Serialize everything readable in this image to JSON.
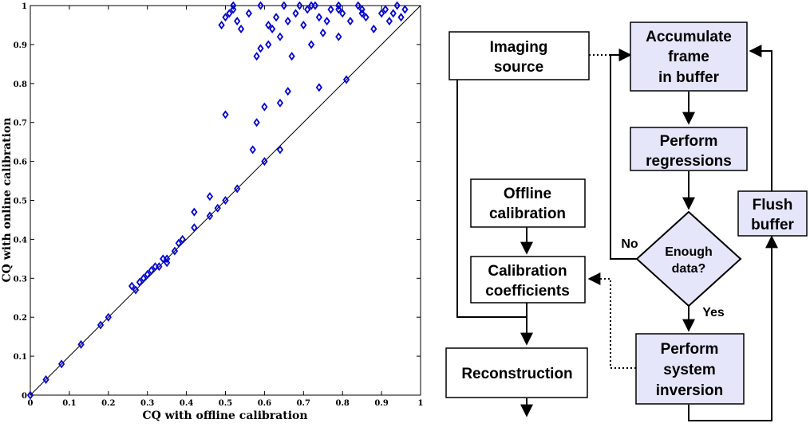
{
  "chart_data": {
    "type": "scatter",
    "xlabel": "CQ with offline calibration",
    "ylabel": "CQ with online calibration",
    "xlim": [
      0,
      1
    ],
    "ylim": [
      0,
      1
    ],
    "xticks": [
      "0",
      "0.1",
      "0.2",
      "0.3",
      "0.4",
      "0.5",
      "0.6",
      "0.7",
      "0.8",
      "0.9",
      "1"
    ],
    "yticks": [
      "0",
      "0.1",
      "0.2",
      "0.3",
      "0.4",
      "0.5",
      "0.6",
      "0.7",
      "0.8",
      "0.9",
      "1"
    ],
    "grid": false,
    "marker": "diamond",
    "marker_color": "#0000cc",
    "reference_line": "y = x",
    "points": [
      [
        0.0,
        0.0
      ],
      [
        0.04,
        0.04
      ],
      [
        0.08,
        0.08
      ],
      [
        0.13,
        0.13
      ],
      [
        0.18,
        0.18
      ],
      [
        0.2,
        0.2
      ],
      [
        0.26,
        0.28
      ],
      [
        0.27,
        0.27
      ],
      [
        0.28,
        0.29
      ],
      [
        0.29,
        0.3
      ],
      [
        0.3,
        0.31
      ],
      [
        0.31,
        0.32
      ],
      [
        0.32,
        0.33
      ],
      [
        0.33,
        0.33
      ],
      [
        0.34,
        0.35
      ],
      [
        0.35,
        0.34
      ],
      [
        0.35,
        0.35
      ],
      [
        0.37,
        0.37
      ],
      [
        0.38,
        0.39
      ],
      [
        0.39,
        0.4
      ],
      [
        0.42,
        0.43
      ],
      [
        0.42,
        0.47
      ],
      [
        0.46,
        0.51
      ],
      [
        0.46,
        0.46
      ],
      [
        0.48,
        0.48
      ],
      [
        0.5,
        0.5
      ],
      [
        0.53,
        0.53
      ],
      [
        0.6,
        0.6
      ],
      [
        0.64,
        0.63
      ],
      [
        0.81,
        0.81
      ],
      [
        0.5,
        0.72
      ],
      [
        0.57,
        0.63
      ],
      [
        0.58,
        0.7
      ],
      [
        0.6,
        0.74
      ],
      [
        0.64,
        0.75
      ],
      [
        0.66,
        0.78
      ],
      [
        0.74,
        0.79
      ],
      [
        0.58,
        0.87
      ],
      [
        0.59,
        0.89
      ],
      [
        0.61,
        0.9
      ],
      [
        0.67,
        0.87
      ],
      [
        0.72,
        0.9
      ],
      [
        0.79,
        0.92
      ],
      [
        0.49,
        0.95
      ],
      [
        0.5,
        0.97
      ],
      [
        0.51,
        0.98
      ],
      [
        0.52,
        0.99
      ],
      [
        0.52,
        1.0
      ],
      [
        0.53,
        0.96
      ],
      [
        0.54,
        0.94
      ],
      [
        0.56,
        0.98
      ],
      [
        0.59,
        1.0
      ],
      [
        0.61,
        0.95
      ],
      [
        0.62,
        0.94
      ],
      [
        0.63,
        0.97
      ],
      [
        0.64,
        0.92
      ],
      [
        0.65,
        1.0
      ],
      [
        0.66,
        0.96
      ],
      [
        0.68,
        0.98
      ],
      [
        0.69,
        1.0
      ],
      [
        0.7,
        0.95
      ],
      [
        0.71,
        0.99
      ],
      [
        0.73,
        1.0
      ],
      [
        0.74,
        0.97
      ],
      [
        0.75,
        0.93
      ],
      [
        0.76,
        0.96
      ],
      [
        0.77,
        0.99
      ],
      [
        0.79,
        1.0
      ],
      [
        0.8,
        0.98
      ],
      [
        0.82,
        0.96
      ],
      [
        0.84,
        1.0
      ],
      [
        0.85,
        0.99
      ],
      [
        0.86,
        0.97
      ],
      [
        0.88,
        0.94
      ],
      [
        0.9,
        0.98
      ],
      [
        0.91,
        0.99
      ],
      [
        0.92,
        0.96
      ],
      [
        0.93,
        0.98
      ],
      [
        0.94,
        1.0
      ],
      [
        0.95,
        0.97
      ],
      [
        0.96,
        0.99
      ],
      [
        0.85,
        0.98
      ],
      [
        0.79,
        0.99
      ],
      [
        0.72,
        1.0
      ]
    ]
  },
  "diagram": {
    "imaging_source": [
      "Imaging",
      "source"
    ],
    "accumulate": [
      "Accumulate",
      "frame",
      "in buffer"
    ],
    "perform_regressions": [
      "Perform",
      "regressions"
    ],
    "offline_calibration": [
      "Offline",
      "calibration"
    ],
    "flush_buffer": [
      "Flush",
      "buffer"
    ],
    "enough_data": [
      "Enough",
      "data?"
    ],
    "calibration_coefficients": [
      "Calibration",
      "coefficients"
    ],
    "reconstruction": "Reconstruction",
    "perform_inversion": [
      "Perform",
      "system",
      "inversion"
    ],
    "label_no": "No",
    "label_yes": "Yes",
    "highlight_fill": "#e6e6fa"
  }
}
